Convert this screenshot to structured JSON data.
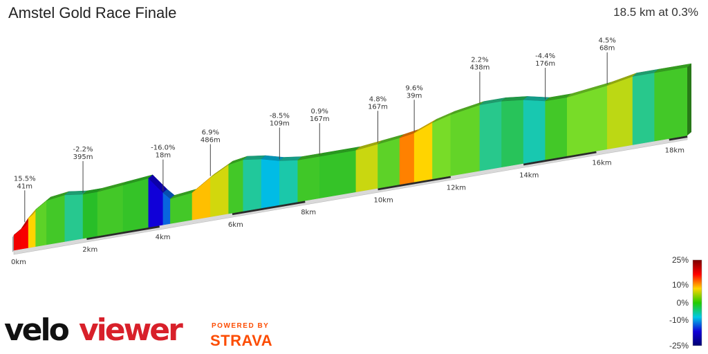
{
  "header": {
    "title": "Amstel Gold Race Finale",
    "summary": "18.5 km at 0.3%"
  },
  "chart_data": {
    "type": "area",
    "title": "Amstel Gold Race Finale",
    "distance_unit": "km",
    "x_ticks": [
      "0km",
      "2km",
      "4km",
      "6km",
      "8km",
      "10km",
      "12km",
      "14km",
      "16km",
      "18km"
    ],
    "x_tick_values": [
      0,
      2,
      4,
      6,
      8,
      10,
      12,
      14,
      16,
      18
    ],
    "xlim": [
      0,
      18.5
    ],
    "profile": [
      {
        "km": 0.0,
        "rel_elev": 0,
        "grade": 8
      },
      {
        "km": 0.2,
        "rel_elev": 2,
        "grade": 16
      },
      {
        "km": 0.4,
        "rel_elev": 6,
        "grade": 15.5
      },
      {
        "km": 0.6,
        "rel_elev": 9,
        "grade": 6
      },
      {
        "km": 0.9,
        "rel_elev": 12,
        "grade": 2
      },
      {
        "km": 1.4,
        "rel_elev": 13,
        "grade": 1
      },
      {
        "km": 1.9,
        "rel_elev": 12,
        "grade": -2.2
      },
      {
        "km": 2.3,
        "rel_elev": 12,
        "grade": 0
      },
      {
        "km": 3.0,
        "rel_elev": 13,
        "grade": 1
      },
      {
        "km": 3.7,
        "rel_elev": 14,
        "grade": 0.5
      },
      {
        "km": 4.1,
        "rel_elev": 7,
        "grade": -16
      },
      {
        "km": 4.3,
        "rel_elev": 4,
        "grade": -12
      },
      {
        "km": 4.9,
        "rel_elev": 5,
        "grade": 1
      },
      {
        "km": 5.4,
        "rel_elev": 10,
        "grade": 6.9
      },
      {
        "km": 5.9,
        "rel_elev": 14,
        "grade": 5
      },
      {
        "km": 6.3,
        "rel_elev": 15,
        "grade": 1
      },
      {
        "km": 6.8,
        "rel_elev": 14,
        "grade": -3
      },
      {
        "km": 7.3,
        "rel_elev": 12,
        "grade": -8.5
      },
      {
        "km": 7.8,
        "rel_elev": 11,
        "grade": -4
      },
      {
        "km": 8.4,
        "rel_elev": 11,
        "grade": 0.9
      },
      {
        "km": 9.4,
        "rel_elev": 11,
        "grade": 0.5
      },
      {
        "km": 10.0,
        "rel_elev": 12,
        "grade": 4.8
      },
      {
        "km": 10.6,
        "rel_elev": 13,
        "grade": 2
      },
      {
        "km": 11.0,
        "rel_elev": 14,
        "grade": 9.6
      },
      {
        "km": 11.5,
        "rel_elev": 17,
        "grade": 6
      },
      {
        "km": 12.0,
        "rel_elev": 19,
        "grade": 3
      },
      {
        "km": 12.8,
        "rel_elev": 21,
        "grade": 2.2
      },
      {
        "km": 13.4,
        "rel_elev": 21,
        "grade": -2
      },
      {
        "km": 14.0,
        "rel_elev": 20,
        "grade": -1
      },
      {
        "km": 14.6,
        "rel_elev": 18,
        "grade": -4.4
      },
      {
        "km": 15.2,
        "rel_elev": 18,
        "grade": 1
      },
      {
        "km": 16.3,
        "rel_elev": 20,
        "grade": 3
      },
      {
        "km": 17.0,
        "rel_elev": 22,
        "grade": 4.5
      },
      {
        "km": 17.6,
        "rel_elev": 22,
        "grade": -2
      },
      {
        "km": 18.5,
        "rel_elev": 22,
        "grade": 1
      }
    ],
    "annotations": [
      {
        "km": 0.3,
        "grade_label": "15.5%",
        "length_label": "41m"
      },
      {
        "km": 1.9,
        "grade_label": "-2.2%",
        "length_label": "395m"
      },
      {
        "km": 4.1,
        "grade_label": "-16.0%",
        "length_label": "18m"
      },
      {
        "km": 5.4,
        "grade_label": "6.9%",
        "length_label": "486m"
      },
      {
        "km": 7.3,
        "grade_label": "-8.5%",
        "length_label": "109m"
      },
      {
        "km": 8.4,
        "grade_label": "0.9%",
        "length_label": "167m"
      },
      {
        "km": 10.0,
        "grade_label": "4.8%",
        "length_label": "167m"
      },
      {
        "km": 11.0,
        "grade_label": "9.6%",
        "length_label": "39m"
      },
      {
        "km": 12.8,
        "grade_label": "2.2%",
        "length_label": "438m"
      },
      {
        "km": 14.6,
        "grade_label": "-4.4%",
        "length_label": "176m"
      },
      {
        "km": 16.3,
        "grade_label": "4.5%",
        "length_label": "68m"
      }
    ],
    "legend": {
      "type": "colorbar",
      "placement": "bottom-right",
      "labels": [
        "25%",
        "10%",
        "0%",
        "-10%",
        "-25%"
      ],
      "label_values": [
        25,
        10,
        0,
        -10,
        -25
      ],
      "colors": [
        "#7a0000",
        "#ff0000",
        "#ffd400",
        "#22cc00",
        "#00c8e6",
        "#1000d8",
        "#000070"
      ]
    }
  },
  "branding": {
    "logo_part1": "velo",
    "logo_part2": "viewer",
    "powered_by": "POWERED BY",
    "partner": "STRAVA"
  }
}
